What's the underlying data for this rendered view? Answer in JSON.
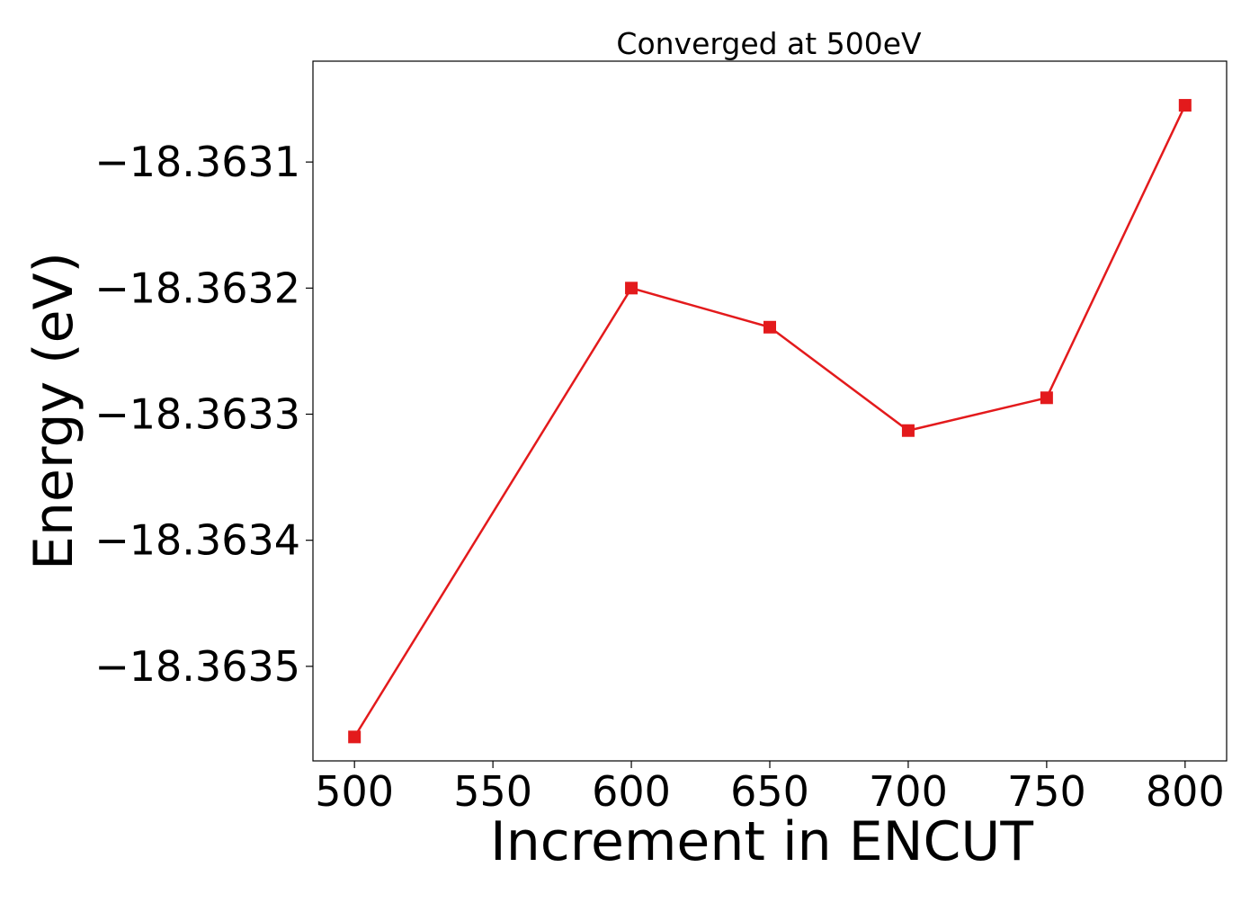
{
  "chart_data": {
    "type": "line",
    "title": "Converged at 500eV",
    "xlabel": "Increment in ENCUT",
    "ylabel": "Energy (eV)",
    "x": [
      500,
      600,
      650,
      700,
      750,
      800
    ],
    "series": [
      {
        "values": [
          -18.363556,
          -18.3632,
          -18.363231,
          -18.363313,
          -18.363287,
          -18.363055
        ],
        "color": "#e31a1c",
        "marker": "square"
      }
    ],
    "xlim": [
      485,
      815
    ],
    "ylim": [
      -18.363575,
      -18.36302
    ],
    "xticks": [
      500,
      550,
      600,
      650,
      700,
      750,
      800
    ],
    "xtick_labels": [
      "500",
      "550",
      "600",
      "650",
      "700",
      "750",
      "800"
    ],
    "yticks": [
      -18.3635,
      -18.3634,
      -18.3633,
      -18.3632,
      -18.3631
    ],
    "ytick_labels": [
      "−18.3635",
      "−18.3634",
      "−18.3633",
      "−18.3632",
      "−18.3631"
    ],
    "grid": false,
    "legend": "none"
  }
}
